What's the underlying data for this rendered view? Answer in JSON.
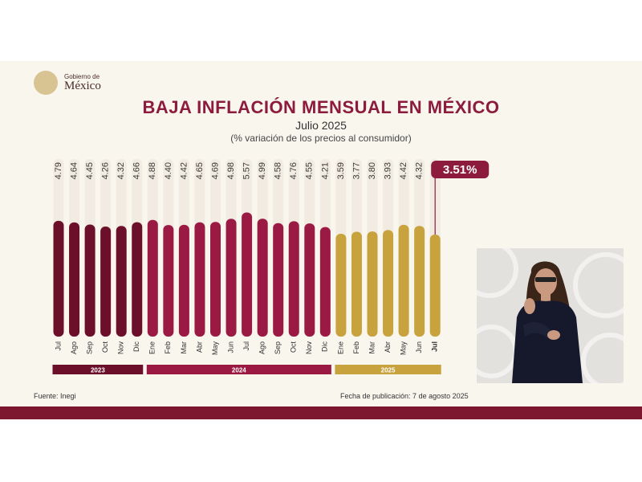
{
  "header": {
    "logo_line1": "Gobierno de",
    "logo_line2": "México",
    "title": "BAJA INFLACIÓN MENSUAL EN MÉXICO",
    "subtitle": "Julio 2025",
    "note": "(% variación de los precios al consumidor)"
  },
  "footer": {
    "source": "Fuente: Inegi",
    "pubdate": "Fecha de publicación: 7 de agosto 2025"
  },
  "colors": {
    "y2023": "#6b0f2b",
    "y2024": "#9b1a44",
    "y2025": "#c8a23c",
    "track": "#f1ebe1",
    "highlight": "#8c1b3d"
  },
  "chart_data": {
    "type": "bar",
    "title": "BAJA INFLACIÓN MENSUAL EN MÉXICO",
    "subtitle": "Julio 2025",
    "ylabel": "(% variación de los precios al consumidor)",
    "categories": [
      "Jul",
      "Ago",
      "Sep",
      "Oct",
      "Nov",
      "Dic",
      "Ene",
      "Feb",
      "Mar",
      "Abr",
      "May",
      "Jun",
      "Jul",
      "Ago",
      "Sep",
      "Oct",
      "Nov",
      "Dic",
      "Ene",
      "Feb",
      "Mar",
      "Abr",
      "May",
      "Jun",
      "Jul"
    ],
    "value_labels": [
      "4.79",
      "4.64",
      "4.45",
      "4.26",
      "4.32",
      "4.66",
      "4.88",
      "4.40",
      "4.42",
      "4.65",
      "4.69",
      "4.98",
      "5.57",
      "4.99",
      "4.58",
      "4.76",
      "4.55",
      "4.21",
      "3.59",
      "3.77",
      "3.80",
      "3.93",
      "4.42",
      "4.32",
      "3.51%"
    ],
    "values": [
      4.79,
      4.64,
      4.45,
      4.26,
      4.32,
      4.66,
      4.88,
      4.4,
      4.42,
      4.65,
      4.69,
      4.98,
      5.57,
      4.99,
      4.58,
      4.76,
      4.55,
      4.21,
      3.59,
      3.77,
      3.8,
      3.93,
      4.42,
      4.32,
      3.51
    ],
    "year_of_bar": [
      "2023",
      "2023",
      "2023",
      "2023",
      "2023",
      "2023",
      "2024",
      "2024",
      "2024",
      "2024",
      "2024",
      "2024",
      "2024",
      "2024",
      "2024",
      "2024",
      "2024",
      "2024",
      "2025",
      "2025",
      "2025",
      "2025",
      "2025",
      "2025",
      "2025"
    ],
    "groups": [
      {
        "label": "2023",
        "start": 0,
        "end": 5
      },
      {
        "label": "2024",
        "start": 6,
        "end": 17
      },
      {
        "label": "2025",
        "start": 18,
        "end": 24
      }
    ],
    "highlight_index": 24,
    "ylim": [
      0,
      5.57
    ],
    "grid": false,
    "legend": "none"
  }
}
